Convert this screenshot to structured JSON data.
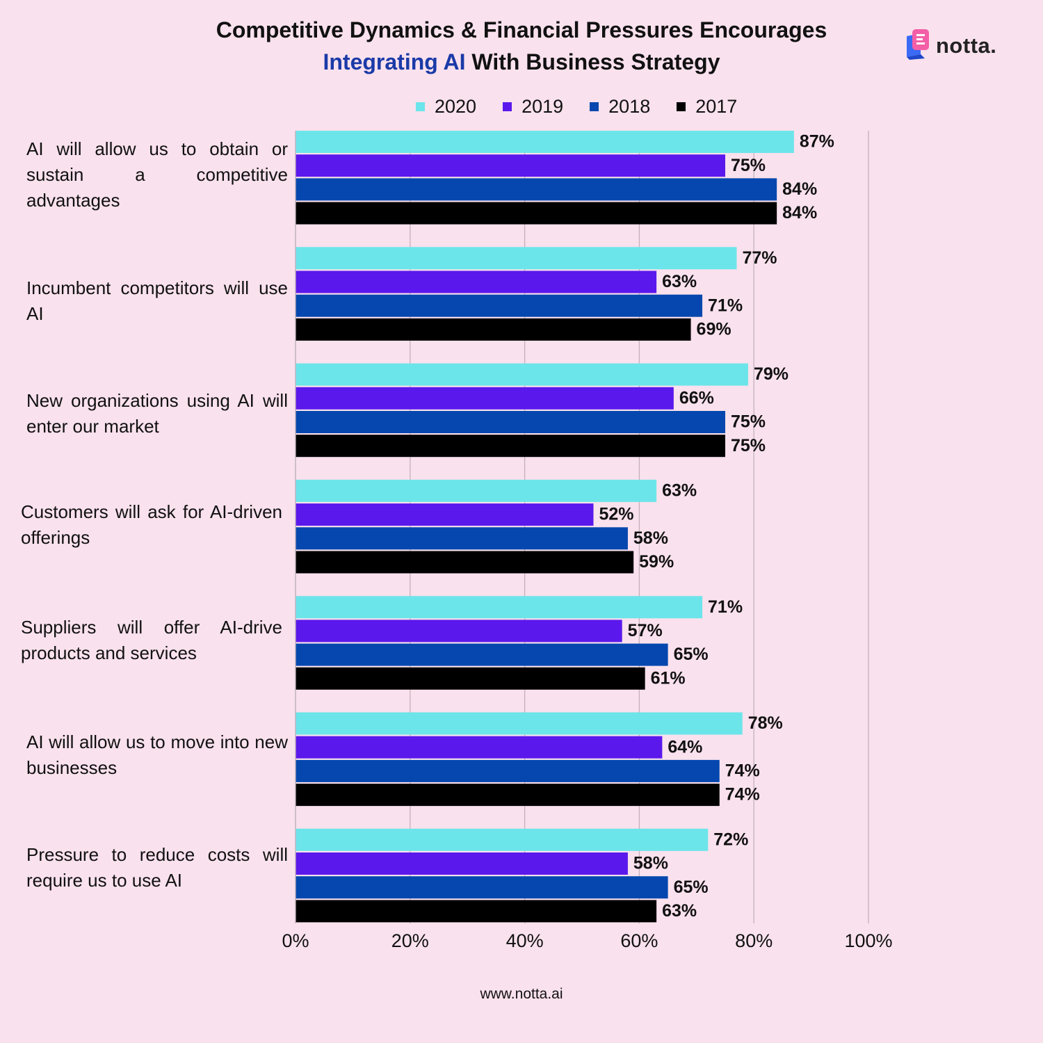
{
  "header": {
    "title_line1": "Competitive Dynamics & Financial Pressures Encourages",
    "title_accent": "Integrating AI",
    "title_rest": " With Business Strategy"
  },
  "logo": {
    "text": "notta.",
    "icon": "notta-logo-icon"
  },
  "footer": {
    "url": "www.notta.ai"
  },
  "chart_data": {
    "type": "bar",
    "orientation": "horizontal",
    "categories": [
      "AI will allow us to obtain or sustain a competitive advantages",
      "Incumbent competitors will use AI",
      "New organizations using AI will enter our market",
      "Customers will ask for AI-driven offerings",
      "Suppliers will offer AI-drive products and services",
      "AI will allow us to move into new businesses",
      "Pressure to reduce costs will require us to use AI"
    ],
    "series": [
      {
        "name": "2020",
        "color": "#6ce5ea",
        "values": [
          87,
          77,
          79,
          63,
          71,
          78,
          72
        ]
      },
      {
        "name": "2019",
        "color": "#5b18ec",
        "values": [
          75,
          63,
          66,
          52,
          57,
          64,
          58
        ]
      },
      {
        "name": "2018",
        "color": "#0547ae",
        "values": [
          84,
          71,
          75,
          58,
          65,
          74,
          65
        ]
      },
      {
        "name": "2017",
        "color": "#000000",
        "values": [
          84,
          69,
          75,
          59,
          61,
          74,
          63
        ]
      }
    ],
    "value_labels": [
      [
        "87%",
        "77%",
        "79%",
        "63%",
        "71%",
        "78%",
        "72%"
      ],
      [
        "75%",
        "63%",
        "66%",
        "52%",
        "57%",
        "64%",
        "58%"
      ],
      [
        "84%",
        "71%",
        "75%",
        "58%",
        "65%",
        "74%",
        "65%"
      ],
      [
        "84%",
        "69%",
        "75%",
        "59%",
        "61%",
        "74%",
        "63%"
      ]
    ],
    "x_ticks": [
      0,
      20,
      40,
      60,
      80,
      100
    ],
    "x_tick_labels": [
      "0%",
      "20%",
      "40%",
      "60%",
      "80%",
      "100%"
    ],
    "xlim": [
      0,
      100
    ],
    "grid": true,
    "legend_position": "top"
  }
}
